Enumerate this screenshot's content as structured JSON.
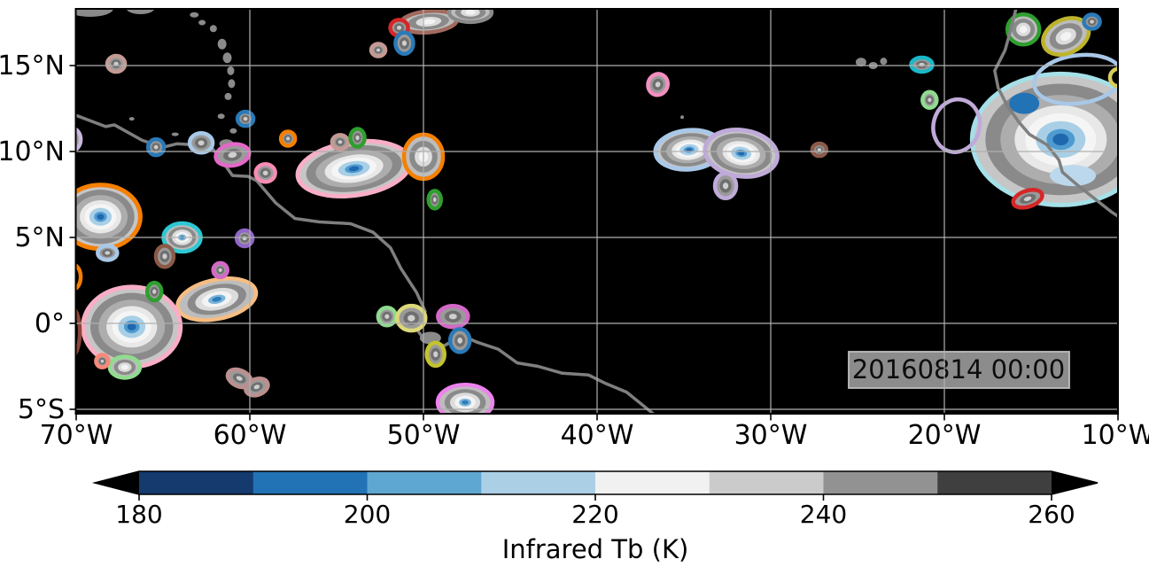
{
  "chart_data": {
    "type": "map-contour",
    "timestamp": "20160814 00:00",
    "map": {
      "background_color": "#000000",
      "grid_color": "#b0b0b0",
      "coast_color": "#7f7f7f",
      "frame_color": "#000000",
      "extent": {
        "lon_min": -70,
        "lon_max": -10,
        "lat_min": -5.3,
        "lat_max": 18.3
      }
    },
    "x_axis": {
      "tick_labels": [
        "70°W",
        "60°W",
        "50°W",
        "40°W",
        "30°W",
        "20°W",
        "10°W"
      ],
      "tick_values": [
        -70,
        -60,
        -50,
        -40,
        -30,
        -20,
        -10
      ]
    },
    "y_axis": {
      "tick_labels": [
        "15°N",
        "10°N",
        "5°N",
        "0°",
        "5°S"
      ],
      "tick_values": [
        15,
        10,
        5,
        0,
        -5
      ]
    },
    "colorbar": {
      "label": "Infrared Tb (K)",
      "tick_labels": [
        "180",
        "200",
        "220",
        "240",
        "260"
      ],
      "tick_values": [
        180,
        200,
        220,
        240,
        260
      ],
      "levels": [
        180,
        190,
        200,
        210,
        220,
        230,
        240,
        250,
        260
      ],
      "segment_colors": [
        "#143a6e",
        "#2272b6",
        "#5ea7d2",
        "#abd0e6",
        "#f1f1f1",
        "#cbcbcb",
        "#929292",
        "#3f3f3f"
      ],
      "extend": "both",
      "extend_color": "#000000"
    },
    "timestamp_box": {
      "fill": "#8c8c8c",
      "border": "#bdbdbd",
      "text_color": "#0d0d0d"
    },
    "fill_levels": {
      "l": [
        [
          1,
          "#c6c6c6"
        ],
        [
          0.85,
          "#8a8a8a"
        ],
        [
          0.68,
          "#adadad"
        ],
        [
          0.52,
          "#e8e8e8"
        ],
        [
          0.4,
          "#f5f5f5"
        ],
        [
          0.28,
          "#a8cfe6"
        ],
        [
          0.16,
          "#4f9bd0"
        ],
        [
          0.09,
          "#2068ae"
        ]
      ],
      "mb": [
        [
          1,
          "#bdbdbd"
        ],
        [
          0.75,
          "#8a8a8a"
        ],
        [
          0.55,
          "#dcdcdc"
        ],
        [
          0.38,
          "#f3f3f3"
        ],
        [
          0.22,
          "#7ab4da"
        ],
        [
          0.12,
          "#2e7cb8"
        ]
      ],
      "m": [
        [
          1,
          "#bdbdbd"
        ],
        [
          0.72,
          "#8a8a8a"
        ],
        [
          0.45,
          "#dcdcdc"
        ],
        [
          0.24,
          "#f3f3f3"
        ]
      ],
      "s": [
        [
          1,
          "#9a9a9a"
        ],
        [
          0.55,
          "#6f6f6f"
        ],
        [
          0.26,
          "#cfcfcf"
        ]
      ]
    },
    "clusters": [
      [
        -54.0,
        9.0,
        64,
        30,
        -8,
        "l",
        "#f9aec6"
      ],
      [
        -50.0,
        9.7,
        22,
        25,
        0,
        "m",
        "#f57f00"
      ],
      [
        -49.7,
        17.55,
        32,
        12,
        -5,
        "m",
        "#a16a5e"
      ],
      [
        -47.3,
        18.1,
        24,
        11,
        0,
        "m",
        "#8a8a8a"
      ],
      [
        -34.7,
        10.1,
        38,
        22,
        -5,
        "l",
        "#a9c8e8"
      ],
      [
        -31.7,
        9.9,
        41,
        26,
        8,
        "l",
        "#bfaad9"
      ],
      [
        -13.3,
        10.7,
        100,
        74,
        0,
        "l",
        "#a5e0e8"
      ],
      [
        -15.4,
        12.8,
        17,
        12,
        0,
        "core",
        "#2272b6"
      ],
      [
        -12.6,
        8.6,
        26,
        12,
        0,
        "core",
        "#bcd8ec"
      ],
      [
        -19.3,
        11.5,
        26,
        30,
        15,
        "ring",
        "#bfaad9"
      ],
      [
        -12.3,
        14.2,
        50,
        27,
        -8,
        "ring",
        "#a9c8e8"
      ],
      [
        -15.45,
        17.1,
        18,
        17,
        0,
        "m",
        "#2f9e2f"
      ],
      [
        -13.0,
        16.7,
        27,
        19,
        -25,
        "m",
        "#bdb42c"
      ],
      [
        -68.6,
        6.2,
        45,
        36,
        0,
        "l",
        "#f57f00"
      ],
      [
        -63.9,
        5.0,
        21,
        16,
        0,
        "mb",
        "#2cc8d4"
      ],
      [
        -61.9,
        1.4,
        45,
        22,
        -12,
        "mb",
        "#f6bd82"
      ],
      [
        -66.8,
        -0.2,
        55,
        45,
        0,
        "l",
        "#f9aec6"
      ],
      [
        -67.2,
        -2.55,
        17,
        12,
        0,
        "m",
        "#8fdc8f"
      ],
      [
        -47.6,
        -4.6,
        31,
        20,
        0,
        "mb",
        "#ee82ee"
      ],
      [
        -70.3,
        -0.5,
        10,
        28,
        0,
        "ring",
        "#8b4638"
      ],
      [
        -70.2,
        2.7,
        9,
        14,
        0,
        "ring",
        "#f57f00"
      ],
      [
        -9.95,
        14.3,
        10,
        10,
        0,
        "ring",
        "#d8cc5a"
      ],
      [
        -67.7,
        15.1,
        10,
        9,
        0,
        "s",
        "#c49a94"
      ],
      [
        -65.4,
        10.25,
        9,
        9,
        0,
        "s",
        "#2b7ab8"
      ],
      [
        -62.8,
        10.5,
        13,
        11,
        0,
        "s",
        "#a9c8e8"
      ],
      [
        -61.0,
        9.8,
        19,
        12,
        -10,
        "s",
        "#e468c8"
      ],
      [
        -59.1,
        8.75,
        11,
        10,
        0,
        "s",
        "#f78cb5"
      ],
      [
        -60.25,
        11.9,
        9,
        8,
        0,
        "s",
        "#2b7ab8"
      ],
      [
        -70.3,
        10.7,
        11,
        13,
        0,
        "s",
        "#ccb8e0"
      ],
      [
        -57.8,
        10.75,
        8,
        8,
        0,
        "s",
        "#f57f00"
      ],
      [
        -54.8,
        10.55,
        9,
        8,
        0,
        "s",
        "#c49a94"
      ],
      [
        -53.8,
        10.8,
        8,
        10,
        0,
        "s",
        "#2f9e2f"
      ],
      [
        -49.35,
        7.2,
        7,
        10,
        0,
        "s",
        "#2f9e2f"
      ],
      [
        -51.4,
        17.2,
        10,
        9,
        0,
        "s",
        "#d62728"
      ],
      [
        -51.1,
        16.3,
        10,
        12,
        0,
        "s",
        "#2b7ab8"
      ],
      [
        -52.6,
        15.9,
        8,
        7,
        0,
        "s",
        "#c49a94"
      ],
      [
        -36.5,
        13.9,
        11,
        12,
        20,
        "s",
        "#f48fc0"
      ],
      [
        -32.6,
        8.0,
        12,
        14,
        0,
        "s",
        "#bfaad9"
      ],
      [
        -27.2,
        10.1,
        8,
        7,
        0,
        "s",
        "#8b5a48"
      ],
      [
        -21.3,
        15.05,
        12,
        8,
        0,
        "s",
        "#1ab8c8"
      ],
      [
        -20.85,
        13.0,
        8,
        9,
        0,
        "s",
        "#8fdc8f"
      ],
      [
        -11.5,
        17.55,
        9,
        8,
        0,
        "s",
        "#2b7ab8"
      ],
      [
        -15.2,
        7.25,
        17,
        9,
        -18,
        "s",
        "#d62728"
      ],
      [
        -68.2,
        4.1,
        11,
        8,
        0,
        "s",
        "#a9c8e8"
      ],
      [
        -64.9,
        3.9,
        10,
        12,
        0,
        "s",
        "#8b5a48"
      ],
      [
        -60.3,
        4.95,
        9,
        9,
        0,
        "s",
        "#9166c8"
      ],
      [
        -61.7,
        3.1,
        8,
        8,
        0,
        "s",
        "#d468c8"
      ],
      [
        -65.5,
        1.85,
        8,
        10,
        0,
        "s",
        "#2f9e2f"
      ],
      [
        -68.5,
        -2.2,
        7,
        7,
        0,
        "s",
        "#f88878"
      ],
      [
        -60.6,
        -3.2,
        14,
        9,
        25,
        "s",
        "#bc8f8f"
      ],
      [
        -59.6,
        -3.7,
        13,
        9,
        -20,
        "s",
        "#bc8f8f"
      ],
      [
        -52.1,
        0.4,
        10,
        10,
        0,
        "s",
        "#8fdc8f"
      ],
      [
        -50.7,
        0.3,
        16,
        14,
        0,
        "s",
        "#dcd878"
      ],
      [
        -48.3,
        0.4,
        17,
        12,
        0,
        "s",
        "#d468c8"
      ],
      [
        -47.9,
        -1.0,
        11,
        13,
        0,
        "s",
        "#2b7ab8"
      ],
      [
        -49.3,
        -1.8,
        10,
        13,
        0,
        "s",
        "#c3c32f"
      ]
    ],
    "coastlines": [
      [
        [
          -70,
          12.1
        ],
        [
          -68.3,
          11.45
        ],
        [
          -67.8,
          11.55
        ],
        [
          -66.2,
          10.65
        ],
        [
          -65.0,
          10.25
        ],
        [
          -64.2,
          10.45
        ],
        [
          -63.4,
          10.4
        ],
        [
          -62.7,
          10.55
        ],
        [
          -62.1,
          10.1
        ],
        [
          -61.7,
          9.6
        ],
        [
          -61.0,
          8.6
        ],
        [
          -60.1,
          8.55
        ],
        [
          -59.6,
          8.3
        ],
        [
          -58.5,
          7.0
        ],
        [
          -57.4,
          6.1
        ],
        [
          -56.0,
          5.9
        ],
        [
          -54.2,
          5.8
        ],
        [
          -52.9,
          5.3
        ],
        [
          -51.9,
          4.4
        ],
        [
          -51.3,
          3.2
        ],
        [
          -50.4,
          1.8
        ],
        [
          -49.9,
          0.7
        ],
        [
          -50.5,
          -0.2
        ],
        [
          -49.9,
          -1.0
        ],
        [
          -48.8,
          -1.3
        ],
        [
          -47.8,
          -0.7
        ],
        [
          -46.9,
          -1.1
        ],
        [
          -45.7,
          -1.5
        ],
        [
          -44.6,
          -2.3
        ],
        [
          -43.4,
          -2.5
        ],
        [
          -42.0,
          -2.9
        ],
        [
          -40.5,
          -3.0
        ],
        [
          -39.5,
          -3.5
        ],
        [
          -38.3,
          -4.0
        ],
        [
          -37.2,
          -4.9
        ],
        [
          -36.6,
          -5.4
        ]
      ],
      [
        [
          -15.85,
          18.4
        ],
        [
          -16.2,
          17.0
        ],
        [
          -16.5,
          15.9
        ],
        [
          -17.1,
          14.7
        ],
        [
          -16.9,
          13.7
        ],
        [
          -16.4,
          12.7
        ],
        [
          -15.7,
          11.7
        ],
        [
          -15.1,
          11.0
        ],
        [
          -14.1,
          10.4
        ],
        [
          -13.4,
          9.5
        ],
        [
          -13.2,
          8.8
        ],
        [
          -12.4,
          8.1
        ],
        [
          -11.4,
          7.3
        ],
        [
          -10.4,
          6.5
        ],
        [
          -9.8,
          6.1
        ]
      ]
    ],
    "islands": [
      [
        -61.35,
        10.45,
        8,
        5
      ],
      [
        -60.95,
        11.2,
        4,
        3
      ],
      [
        -61.65,
        12.05,
        4,
        3
      ],
      [
        -61.25,
        13.2,
        4,
        4
      ],
      [
        -61.05,
        13.95,
        4,
        5
      ],
      [
        -61.1,
        14.7,
        4,
        5
      ],
      [
        -61.3,
        15.45,
        5,
        6
      ],
      [
        -61.6,
        16.25,
        5,
        6
      ],
      [
        -62.1,
        17.15,
        4,
        4
      ],
      [
        -62.75,
        17.5,
        4,
        3
      ],
      [
        -63.2,
        17.95,
        5,
        3
      ],
      [
        -66.3,
        18.35,
        16,
        7
      ],
      [
        -69.2,
        18.3,
        26,
        9
      ],
      [
        -63.1,
        10.8,
        5,
        2
      ],
      [
        -64.3,
        11.0,
        4,
        2
      ],
      [
        -66.8,
        11.9,
        3,
        2
      ],
      [
        -24.8,
        15.2,
        6,
        5
      ],
      [
        -24.1,
        15.0,
        5,
        4
      ],
      [
        -23.5,
        15.25,
        4,
        4
      ],
      [
        -35.1,
        12.0,
        2,
        2
      ],
      [
        -49.6,
        -0.85,
        12,
        7
      ],
      [
        -50.7,
        0.3,
        6,
        4
      ]
    ]
  }
}
